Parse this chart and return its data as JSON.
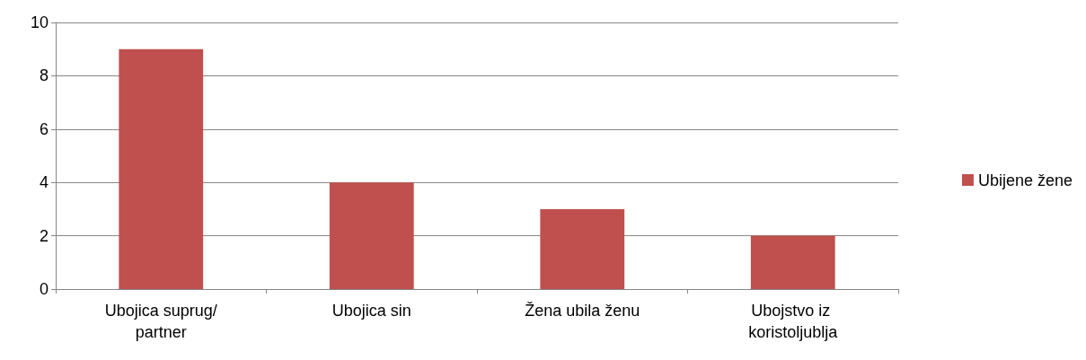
{
  "chart_data": {
    "type": "bar",
    "categories": [
      "Ubojica suprug/partner",
      "Ubojica sin",
      "Žena ubila ženu",
      "Ubojstvo iz koristoljublja"
    ],
    "series": [
      {
        "name": "Ubijene žene",
        "color": "#c0504d",
        "values": [
          9,
          4,
          3,
          2
        ]
      }
    ],
    "ylim": [
      0,
      10
    ],
    "yticks": [
      0,
      2,
      4,
      6,
      8,
      10
    ],
    "grid": "y",
    "legend": "right"
  }
}
